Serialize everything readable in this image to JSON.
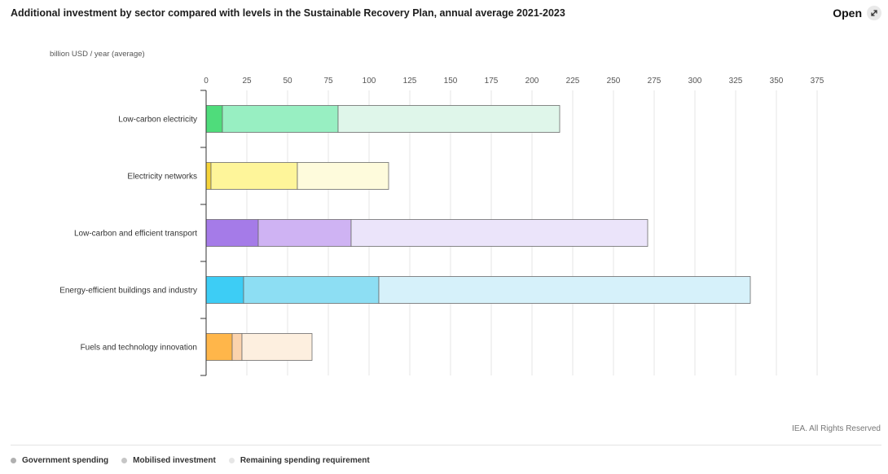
{
  "header": {
    "title": "Additional investment by sector compared with levels in the Sustainable Recovery Plan, annual average 2021-2023",
    "open_label": "Open"
  },
  "footer": {
    "credit": "IEA. All Rights Reserved"
  },
  "legend": {
    "items": [
      {
        "label": "Government spending",
        "color": "#b0b0b0"
      },
      {
        "label": "Mobilised investment",
        "color": "#c6c6c6"
      },
      {
        "label": "Remaining spending requirement",
        "color": "#e6e6e6"
      }
    ]
  },
  "chart_data": {
    "type": "bar",
    "orientation": "horizontal",
    "stacked": true,
    "ylabel": "billion USD / year (average)",
    "xlim": [
      0,
      375
    ],
    "xticks": [
      0,
      25,
      50,
      75,
      100,
      125,
      150,
      175,
      200,
      225,
      250,
      275,
      300,
      325,
      350,
      375
    ],
    "grid": true,
    "categories": [
      "Low-carbon electricity",
      "Electricity networks",
      "Low-carbon and efficient transport",
      "Energy-efficient buildings and industry",
      "Fuels and technology innovation"
    ],
    "series": [
      {
        "name": "Government spending",
        "values": [
          10,
          3,
          32,
          23,
          16
        ]
      },
      {
        "name": "Mobilised investment",
        "values": [
          71,
          53,
          57,
          83,
          6
        ]
      },
      {
        "name": "Remaining spending requirement",
        "values": [
          136,
          56,
          182,
          228,
          43
        ]
      }
    ],
    "colors": [
      [
        "#4fdc7b",
        "#98efc2",
        "#dff6ea"
      ],
      [
        "#f5d33a",
        "#fef59a",
        "#fefbdc"
      ],
      [
        "#a57be8",
        "#cfb3f3",
        "#ebe4fa"
      ],
      [
        "#3dcdf5",
        "#8ddef3",
        "#d6f1fa"
      ],
      [
        "#ffb64a",
        "#fbd3ad",
        "#fdefdf"
      ]
    ],
    "legend_position": "bottom-left"
  }
}
